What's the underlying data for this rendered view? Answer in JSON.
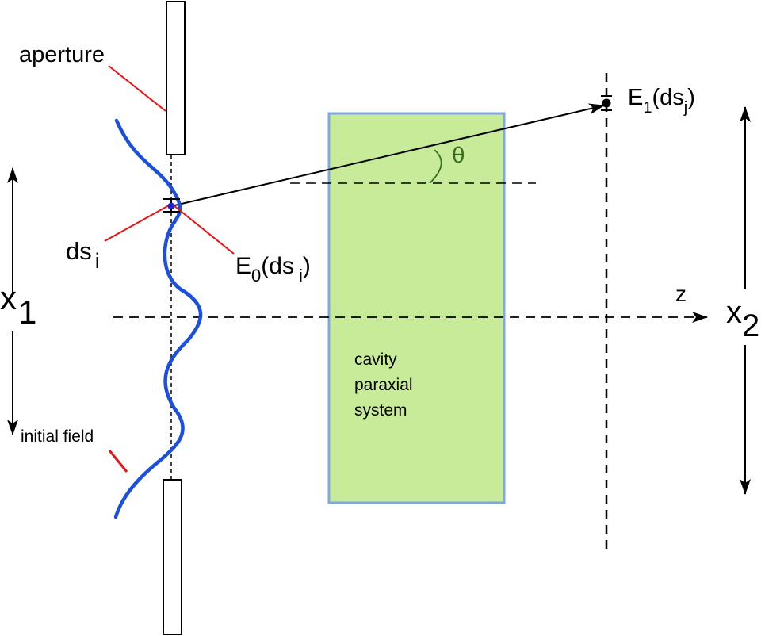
{
  "labels": {
    "aperture": "aperture",
    "ds_i": "ds",
    "ds_i_sub": "i",
    "e0": "E",
    "e0_sub": "0",
    "e0_arg": "(ds",
    "e0_arg_sub": "i",
    "e0_close": ")",
    "e1": "E",
    "e1_sub": "1",
    "e1_arg": "(ds",
    "e1_arg_sub": "j",
    "e1_close": ")",
    "theta": "θ",
    "x1": "x",
    "x1_sub": "1",
    "x2": "x",
    "x2_sub": "2",
    "z": "z",
    "cavity_line1": "cavity",
    "cavity_line2": "paraxial",
    "cavity_line3": "system",
    "initial_field": "initial field"
  },
  "colors": {
    "field_curve": "#1a4fe0",
    "leader_lines": "#ee1111",
    "cavity_fill": "#c7eb98",
    "cavity_border": "#7fa8e0",
    "theta_arc": "#3a6b1e",
    "point": "#2222cc"
  }
}
